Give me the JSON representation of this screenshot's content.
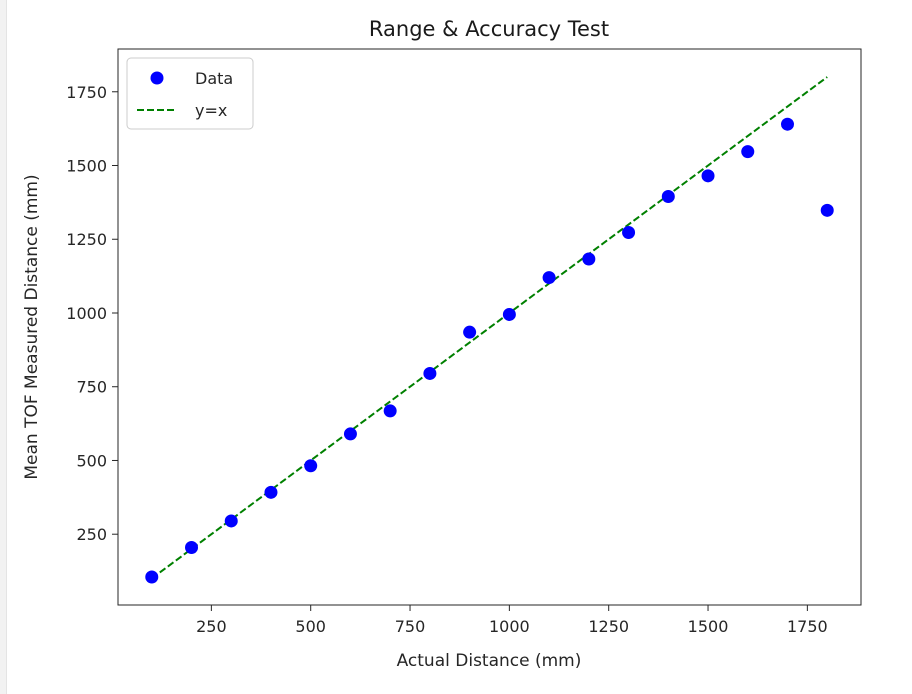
{
  "chart_data": {
    "type": "scatter",
    "title": "Range & Accuracy Test",
    "xlabel": "Actual Distance (mm)",
    "ylabel": "Mean TOF Measured Distance (mm)",
    "xlim": [
      15,
      1885
    ],
    "ylim": [
      10,
      1895
    ],
    "xticks": [
      250,
      500,
      750,
      1000,
      1250,
      1500,
      1750
    ],
    "yticks": [
      250,
      500,
      750,
      1000,
      1250,
      1500,
      1750
    ],
    "grid": false,
    "legend": {
      "placement": "top-left",
      "entries": [
        "Data",
        "y=x"
      ]
    },
    "series": [
      {
        "name": "Data",
        "kind": "scatter",
        "color": "#0000ff",
        "x": [
          100,
          200,
          300,
          400,
          500,
          600,
          700,
          800,
          900,
          1000,
          1100,
          1200,
          1300,
          1400,
          1500,
          1600,
          1700,
          1800
        ],
        "y": [
          105,
          205,
          295,
          392,
          482,
          590,
          668,
          795,
          935,
          995,
          1120,
          1183,
          1273,
          1395,
          1465,
          1547,
          1640,
          1348
        ]
      },
      {
        "name": "y=x",
        "kind": "line",
        "style": "dashed",
        "color": "#008000",
        "x": [
          100,
          1800
        ],
        "y": [
          100,
          1800
        ]
      }
    ]
  }
}
